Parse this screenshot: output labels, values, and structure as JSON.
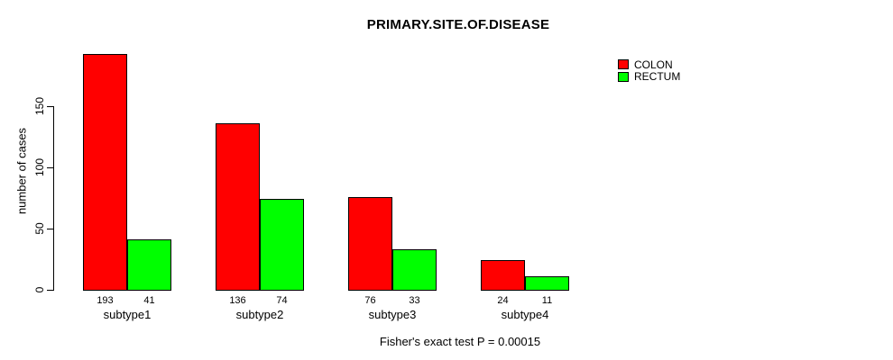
{
  "chart_data": {
    "type": "bar",
    "title": "PRIMARY.SITE.OF.DISEASE",
    "ylabel": "number of cases",
    "xlabel": "",
    "categories": [
      "subtype1",
      "subtype2",
      "subtype3",
      "subtype4"
    ],
    "series": [
      {
        "name": "COLON",
        "color": "#ff0000",
        "values": [
          193,
          136,
          76,
          24
        ]
      },
      {
        "name": "RECTUM",
        "color": "#00ff00",
        "values": [
          41,
          74,
          33,
          11
        ]
      }
    ],
    "yticks": [
      0,
      50,
      100,
      150
    ],
    "ylim": [
      0,
      203
    ],
    "grid": false,
    "legend_position": "top-right",
    "bar_labels_shown": true,
    "bar_border_color": "#000000",
    "annotation": "Fisher's exact test P = 0.00015"
  }
}
